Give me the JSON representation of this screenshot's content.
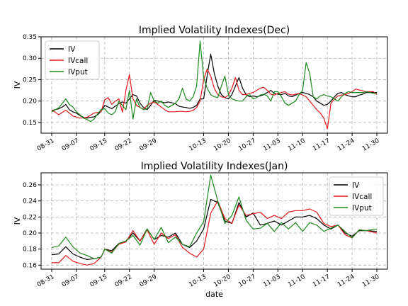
{
  "chart_data": [
    {
      "type": "line",
      "title": "Implied Volatility Indexes(Dec)",
      "xlabel": "",
      "ylabel": "IV",
      "ylim": [
        0.125,
        0.35
      ],
      "yticks": [
        0.15,
        0.2,
        0.25,
        0.3,
        0.35
      ],
      "yticklabels": [
        "0.15",
        "0.20",
        "0.25",
        "0.30",
        "0.35"
      ],
      "xticks": [
        0,
        7,
        15,
        22,
        29,
        43,
        50,
        57,
        64,
        71,
        78,
        85,
        92
      ],
      "xticklabels": [
        "08-31",
        "09-07",
        "09-15",
        "09-22",
        "09-29",
        "10-13",
        "10-20",
        "10-27",
        "11-03",
        "11-10",
        "11-17",
        "11-24",
        "11-30"
      ],
      "legend_position": "top-left",
      "grid": true,
      "series": [
        {
          "name": "IV",
          "color": "#000000",
          "x": [
            0,
            1,
            2,
            3,
            4,
            5,
            6,
            7,
            8,
            9,
            10,
            11,
            12,
            13,
            14,
            15,
            16,
            17,
            18,
            19,
            20,
            21,
            22,
            23,
            24,
            25,
            26,
            27,
            28,
            29,
            30,
            31,
            32,
            33,
            34,
            35,
            36,
            37,
            38,
            39,
            40,
            41,
            42,
            43,
            44,
            45,
            46,
            47,
            48,
            49,
            50,
            51,
            52,
            53,
            54,
            55,
            56,
            57,
            58,
            59,
            60,
            61,
            62,
            63,
            64,
            65,
            66,
            67,
            68,
            69,
            70,
            71,
            72,
            73,
            74,
            75,
            76,
            77,
            78,
            79,
            80,
            81,
            82,
            83,
            84,
            85,
            86,
            87,
            88,
            89,
            90,
            91,
            92
          ],
          "y": [
            0.178,
            0.18,
            0.182,
            0.186,
            0.192,
            0.18,
            0.175,
            0.172,
            0.166,
            0.162,
            0.16,
            0.162,
            0.163,
            0.168,
            0.176,
            0.19,
            0.186,
            0.182,
            0.188,
            0.194,
            0.198,
            0.195,
            0.205,
            0.215,
            0.212,
            0.195,
            0.185,
            0.18,
            0.19,
            0.202,
            0.2,
            0.198,
            0.196,
            0.198,
            0.196,
            0.194,
            0.188,
            0.186,
            0.185,
            0.183,
            0.185,
            0.19,
            0.205,
            0.205,
            0.26,
            0.31,
            0.265,
            0.235,
            0.215,
            0.208,
            0.205,
            0.215,
            0.235,
            0.255,
            0.23,
            0.215,
            0.21,
            0.212,
            0.21,
            0.212,
            0.215,
            0.22,
            0.225,
            0.218,
            0.216,
            0.215,
            0.218,
            0.212,
            0.21,
            0.214,
            0.218,
            0.22,
            0.218,
            0.215,
            0.21,
            0.2,
            0.195,
            0.19,
            0.192,
            0.2,
            0.21,
            0.218,
            0.22,
            0.215,
            0.212,
            0.21,
            0.21,
            0.214,
            0.216,
            0.22,
            0.22,
            0.22,
            0.22
          ]
        },
        {
          "name": "IVcall",
          "color": "#e41a1c",
          "x": [
            0,
            2,
            4,
            6,
            8,
            10,
            12,
            14,
            15,
            16,
            17,
            18,
            19,
            20,
            21,
            22,
            23,
            24,
            25,
            26,
            27,
            28,
            29,
            30,
            31,
            32,
            33,
            34,
            35,
            36,
            37,
            38,
            39,
            40,
            41,
            42,
            43,
            44,
            45,
            46,
            47,
            48,
            49,
            50,
            51,
            52,
            53,
            54,
            55,
            56,
            57,
            58,
            59,
            60,
            61,
            62,
            63,
            64,
            65,
            66,
            67,
            68,
            69,
            70,
            71,
            72,
            73,
            74,
            75,
            76,
            77,
            78,
            79,
            80,
            81,
            82,
            83,
            84,
            85,
            86,
            87,
            88,
            89,
            90,
            91,
            92
          ],
          "y": [
            0.18,
            0.168,
            0.179,
            0.165,
            0.16,
            0.162,
            0.172,
            0.175,
            0.203,
            0.208,
            0.192,
            0.2,
            0.205,
            0.174,
            0.225,
            0.262,
            0.205,
            0.19,
            0.185,
            0.181,
            0.19,
            0.195,
            0.198,
            0.192,
            0.186,
            0.18,
            0.175,
            0.175,
            0.175,
            0.176,
            0.176,
            0.175,
            0.176,
            0.178,
            0.185,
            0.2,
            0.25,
            0.275,
            0.258,
            0.23,
            0.215,
            0.21,
            0.208,
            0.214,
            0.23,
            0.255,
            0.225,
            0.215,
            0.215,
            0.218,
            0.22,
            0.225,
            0.23,
            0.232,
            0.225,
            0.216,
            0.214,
            0.218,
            0.22,
            0.222,
            0.216,
            0.214,
            0.216,
            0.218,
            0.214,
            0.21,
            0.2,
            0.19,
            0.18,
            0.172,
            0.16,
            0.135,
            0.195,
            0.205,
            0.212,
            0.214,
            0.215,
            0.218,
            0.222,
            0.228,
            0.226,
            0.224,
            0.222,
            0.222,
            0.222,
            0.215
          ]
        },
        {
          "name": "IVput",
          "color": "#1a8a1a",
          "x": [
            0,
            2,
            4,
            5,
            6,
            7,
            8,
            9,
            10,
            11,
            12,
            13,
            14,
            15,
            16,
            17,
            18,
            19,
            20,
            21,
            22,
            23,
            24,
            25,
            26,
            27,
            28,
            29,
            30,
            31,
            32,
            33,
            34,
            35,
            36,
            37,
            38,
            39,
            40,
            41,
            42,
            43,
            44,
            45,
            46,
            47,
            48,
            49,
            50,
            51,
            52,
            53,
            54,
            55,
            56,
            57,
            58,
            59,
            60,
            61,
            62,
            63,
            64,
            65,
            66,
            67,
            68,
            69,
            70,
            71,
            72,
            73,
            74,
            75,
            76,
            77,
            78,
            79,
            80,
            81,
            82,
            83,
            84,
            85,
            86,
            87,
            88,
            89,
            90,
            91,
            92
          ],
          "y": [
            0.175,
            0.184,
            0.205,
            0.192,
            0.186,
            0.175,
            0.168,
            0.16,
            0.157,
            0.152,
            0.158,
            0.17,
            0.18,
            0.182,
            0.172,
            0.168,
            0.175,
            0.2,
            0.19,
            0.18,
            0.225,
            0.158,
            0.205,
            0.185,
            0.18,
            0.182,
            0.22,
            0.2,
            0.195,
            0.2,
            0.19,
            0.185,
            0.19,
            0.195,
            0.205,
            0.23,
            0.205,
            0.2,
            0.21,
            0.235,
            0.34,
            0.255,
            0.23,
            0.215,
            0.21,
            0.208,
            0.235,
            0.258,
            0.215,
            0.205,
            0.202,
            0.2,
            0.2,
            0.21,
            0.215,
            0.205,
            0.208,
            0.214,
            0.216,
            0.212,
            0.2,
            0.222,
            0.222,
            0.21,
            0.195,
            0.19,
            0.195,
            0.2,
            0.215,
            0.225,
            0.29,
            0.265,
            0.21,
            0.205,
            0.212,
            0.215,
            0.212,
            0.21,
            0.205,
            0.2,
            0.21,
            0.218,
            0.222,
            0.22,
            0.22,
            0.22,
            0.22,
            0.222,
            0.22,
            0.218,
            0.218
          ]
        }
      ]
    },
    {
      "type": "line",
      "title": "Implied Volatility Indexes(Jan)",
      "xlabel": "date",
      "ylabel": "IV",
      "ylim": [
        0.155,
        0.275
      ],
      "yticks": [
        0.16,
        0.18,
        0.2,
        0.22,
        0.24,
        0.26
      ],
      "yticklabels": [
        "0.16",
        "0.18",
        "0.20",
        "0.22",
        "0.24",
        "0.26"
      ],
      "xticks": [
        0,
        7,
        15,
        22,
        29,
        43,
        50,
        57,
        64,
        71,
        78,
        85,
        92
      ],
      "xticklabels": [
        "08-31",
        "09-07",
        "09-15",
        "09-22",
        "09-29",
        "10-13",
        "10-20",
        "10-27",
        "11-03",
        "11-10",
        "11-17",
        "11-24",
        "11-30"
      ],
      "legend_position": "top-right",
      "grid": true,
      "series": [
        {
          "name": "IV",
          "color": "#000000",
          "x": [
            0,
            2,
            4,
            6,
            8,
            10,
            12,
            14,
            15,
            17,
            19,
            21,
            23,
            25,
            27,
            29,
            31,
            33,
            35,
            37,
            39,
            41,
            43,
            45,
            47,
            49,
            51,
            53,
            55,
            57,
            59,
            61,
            63,
            65,
            67,
            69,
            71,
            73,
            75,
            77,
            79,
            81,
            83,
            85,
            87,
            89,
            92
          ],
          "y": [
            0.173,
            0.174,
            0.183,
            0.174,
            0.17,
            0.167,
            0.168,
            0.17,
            0.18,
            0.178,
            0.187,
            0.19,
            0.2,
            0.19,
            0.205,
            0.192,
            0.197,
            0.195,
            0.2,
            0.186,
            0.182,
            0.19,
            0.205,
            0.242,
            0.238,
            0.215,
            0.212,
            0.238,
            0.22,
            0.225,
            0.21,
            0.212,
            0.215,
            0.21,
            0.215,
            0.22,
            0.22,
            0.222,
            0.218,
            0.21,
            0.205,
            0.21,
            0.2,
            0.196,
            0.203,
            0.203,
            0.202
          ]
        },
        {
          "name": "IVcall",
          "color": "#e41a1c",
          "x": [
            0,
            2,
            4,
            6,
            8,
            10,
            12,
            14,
            15,
            17,
            19,
            21,
            23,
            25,
            27,
            29,
            31,
            33,
            35,
            37,
            39,
            41,
            43,
            45,
            47,
            49,
            51,
            53,
            55,
            57,
            59,
            61,
            63,
            65,
            67,
            69,
            71,
            73,
            75,
            77,
            79,
            81,
            83,
            85,
            87,
            89,
            92
          ],
          "y": [
            0.163,
            0.163,
            0.172,
            0.165,
            0.162,
            0.16,
            0.162,
            0.17,
            0.18,
            0.176,
            0.186,
            0.189,
            0.203,
            0.19,
            0.204,
            0.186,
            0.2,
            0.193,
            0.198,
            0.182,
            0.175,
            0.17,
            0.18,
            0.225,
            0.24,
            0.218,
            0.212,
            0.235,
            0.222,
            0.224,
            0.226,
            0.218,
            0.222,
            0.218,
            0.226,
            0.228,
            0.228,
            0.23,
            0.226,
            0.212,
            0.208,
            0.21,
            0.198,
            0.194,
            0.204,
            0.203,
            0.2
          ]
        },
        {
          "name": "IVput",
          "color": "#1a8a1a",
          "x": [
            0,
            2,
            4,
            6,
            8,
            10,
            12,
            14,
            15,
            17,
            19,
            21,
            23,
            25,
            27,
            29,
            31,
            33,
            35,
            37,
            39,
            41,
            43,
            45,
            47,
            49,
            51,
            53,
            55,
            57,
            59,
            61,
            63,
            65,
            67,
            69,
            71,
            73,
            75,
            77,
            79,
            81,
            83,
            85,
            87,
            89,
            92
          ],
          "y": [
            0.182,
            0.184,
            0.195,
            0.183,
            0.175,
            0.172,
            0.168,
            0.17,
            0.18,
            0.175,
            0.187,
            0.19,
            0.197,
            0.185,
            0.205,
            0.192,
            0.207,
            0.188,
            0.195,
            0.186,
            0.183,
            0.2,
            0.214,
            0.272,
            0.24,
            0.212,
            0.222,
            0.245,
            0.216,
            0.205,
            0.206,
            0.212,
            0.202,
            0.213,
            0.205,
            0.213,
            0.202,
            0.213,
            0.21,
            0.202,
            0.206,
            0.21,
            0.202,
            0.194,
            0.204,
            0.203,
            0.205
          ]
        }
      ]
    }
  ]
}
